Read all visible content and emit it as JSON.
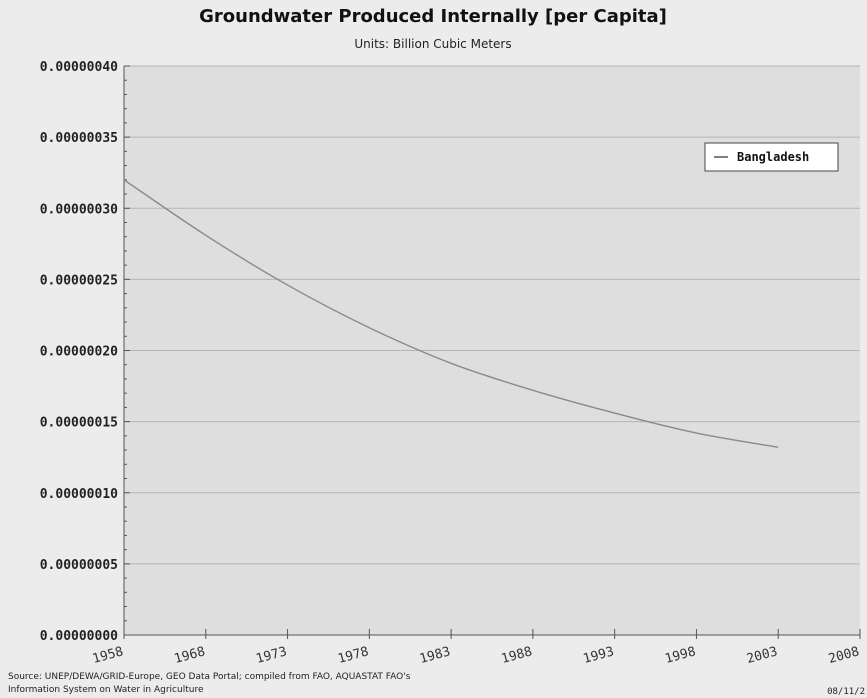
{
  "chart_data": {
    "type": "line",
    "title": "Groundwater Produced Internally [per Capita]",
    "subtitle": "Units: Billion Cubic Meters",
    "x_tick_labels": [
      "1958",
      "1968",
      "1973",
      "1978",
      "1983",
      "1988",
      "1993",
      "1998",
      "2003",
      "2008"
    ],
    "y_tick_labels": [
      "0.00000000",
      "0.00000005",
      "0.00000010",
      "0.00000015",
      "0.00000020",
      "0.00000025",
      "0.00000030",
      "0.00000035",
      "0.00000040"
    ],
    "ylim": [
      0,
      4e-07
    ],
    "grid": true,
    "legend_position": "top-right",
    "series": [
      {
        "name": "Bangladesh",
        "color": "#8a8a8a",
        "points": [
          {
            "x": "1958",
            "y": 3.2e-07
          },
          {
            "x": "1968",
            "y": 2.81e-07
          },
          {
            "x": "1973",
            "y": 2.46e-07
          },
          {
            "x": "1978",
            "y": 2.16e-07
          },
          {
            "x": "1983",
            "y": 1.91e-07
          },
          {
            "x": "1988",
            "y": 1.72e-07
          },
          {
            "x": "1993",
            "y": 1.56e-07
          },
          {
            "x": "1998",
            "y": 1.42e-07
          },
          {
            "x": "2003",
            "y": 1.32e-07
          }
        ]
      }
    ]
  },
  "footer": {
    "source_line1": "Source: UNEP/DEWA/GRID-Europe, GEO Data Portal; compiled from FAO, AQUASTAT FAO's",
    "source_line2": "Information System on Water in Agriculture",
    "date": "08/11/2"
  },
  "colors": {
    "plot_background": "#dedede",
    "grid": "#b4b4b4",
    "axis": "#555555",
    "page_background": "#ececec"
  }
}
